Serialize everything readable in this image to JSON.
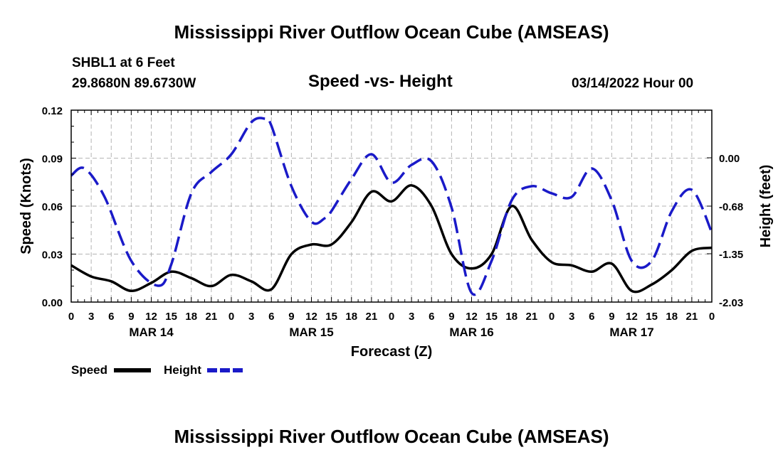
{
  "page": {
    "title": "Mississippi River Outflow Ocean Cube (AMSEAS)",
    "station": "SHBL1 at 6 Feet",
    "location": "29.8680N  89.6730W",
    "subtitle": "Speed -vs- Height",
    "datetime": "03/14/2022 Hour 00",
    "footer_title": "Mississippi River Outflow Ocean Cube (AMSEAS)"
  },
  "chart_data": {
    "type": "line",
    "title": "Speed -vs- Height",
    "xlabel": "Forecast (Z)",
    "ylabel": "Speed (Knots)",
    "y2label": "Height (feet)",
    "xlim": [
      0,
      96
    ],
    "ylim": [
      0,
      0.12
    ],
    "y2lim": [
      -2.03,
      0.67
    ],
    "grid": true,
    "x_tick_labels": [
      "0",
      "3",
      "6",
      "9",
      "12",
      "15",
      "18",
      "21",
      "0",
      "3",
      "6",
      "9",
      "12",
      "15",
      "18",
      "21",
      "0",
      "3",
      "6",
      "9",
      "12",
      "15",
      "18",
      "21",
      "0",
      "3",
      "6",
      "9",
      "12",
      "15",
      "18",
      "21",
      "0"
    ],
    "date_labels": [
      {
        "x": 12,
        "label": "MAR 14"
      },
      {
        "x": 36,
        "label": "MAR 15"
      },
      {
        "x": 60,
        "label": "MAR 16"
      },
      {
        "x": 84,
        "label": "MAR 17"
      }
    ],
    "y_tick_labels": [
      "0.00",
      "0.03",
      "0.06",
      "0.09",
      "0.12"
    ],
    "y_ticks": [
      0,
      0.03,
      0.06,
      0.09,
      0.12
    ],
    "y2_tick_labels": [
      "-2.03",
      "-1.35",
      "-0.68",
      "0.00"
    ],
    "y2_ticks": [
      -2.03,
      -1.35,
      -0.68,
      0.0
    ],
    "series": [
      {
        "name": "Speed",
        "axis": "left",
        "color": "#000000",
        "dash": "solid",
        "x": [
          0,
          3,
          6,
          9,
          12,
          15,
          18,
          21,
          24,
          27,
          30,
          33,
          36,
          39,
          42,
          45,
          48,
          51,
          54,
          57,
          60,
          63,
          66,
          69,
          72,
          75,
          78,
          81,
          84,
          87,
          90,
          93,
          96
        ],
        "values": [
          0.023,
          0.016,
          0.013,
          0.007,
          0.012,
          0.019,
          0.015,
          0.01,
          0.017,
          0.013,
          0.008,
          0.03,
          0.036,
          0.036,
          0.05,
          0.069,
          0.063,
          0.073,
          0.06,
          0.03,
          0.021,
          0.03,
          0.06,
          0.039,
          0.025,
          0.023,
          0.019,
          0.024,
          0.007,
          0.011,
          0.02,
          0.032,
          0.034
        ]
      },
      {
        "name": "Height",
        "axis": "right",
        "color": "#1a1ac8",
        "dash": "dashed",
        "x": [
          0,
          2,
          5,
          9,
          13,
          15,
          18,
          21,
          24,
          27,
          29,
          30,
          33,
          36,
          38,
          39,
          42,
          45,
          48,
          51,
          54,
          57,
          60,
          63,
          66,
          69,
          72,
          75,
          78,
          81,
          84,
          87,
          90,
          93,
          96
        ],
        "values": [
          -0.25,
          -0.15,
          -0.55,
          -1.45,
          -1.8,
          -1.5,
          -0.5,
          -0.2,
          0.05,
          0.5,
          0.55,
          0.45,
          -0.4,
          -0.9,
          -0.85,
          -0.75,
          -0.3,
          0.05,
          -0.35,
          -0.1,
          -0.05,
          -0.7,
          -1.9,
          -1.45,
          -0.6,
          -0.4,
          -0.5,
          -0.55,
          -0.15,
          -0.6,
          -1.45,
          -1.45,
          -0.75,
          -0.45,
          -1.05
        ]
      }
    ],
    "legend": [
      {
        "label": "Speed",
        "color": "#000000",
        "dash": "solid"
      },
      {
        "label": "Height",
        "color": "#1a1ac8",
        "dash": "dashed"
      }
    ]
  }
}
